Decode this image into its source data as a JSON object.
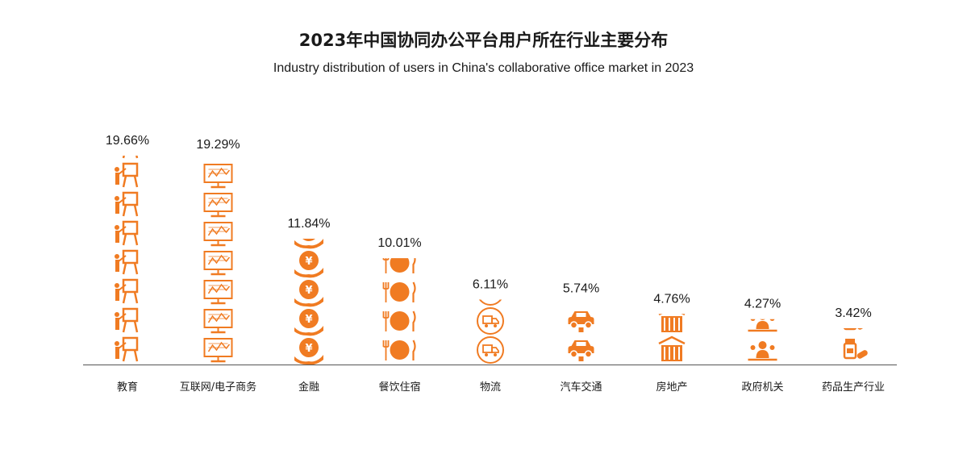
{
  "header": {
    "title": "2023年中国协同办公平台用户所在行业主要分布",
    "subtitle": "Industry distribution of users in China's collaborative office market in 2023"
  },
  "colors": {
    "accent": "#F07B22",
    "axis": "#555555",
    "text": "#1a1a1a"
  },
  "chart_data": {
    "type": "bar",
    "title": "2023年中国协同办公平台用户所在行业主要分布",
    "subtitle": "Industry distribution of users in China's collaborative office market in 2023",
    "categories": [
      "教育",
      "互联网/电子商务",
      "金融",
      "餐饮住宿",
      "物流",
      "汽车交通",
      "房地产",
      "政府机关",
      "药品生产行业"
    ],
    "values": [
      19.66,
      19.29,
      11.84,
      10.01,
      6.11,
      5.74,
      4.76,
      4.27,
      3.42
    ],
    "value_labels": [
      "19.66%",
      "19.29%",
      "11.84%",
      "10.01%",
      "6.11%",
      "5.74%",
      "4.76%",
      "4.27%",
      "3.42%"
    ],
    "icons": [
      "teacher-board-icon",
      "monitor-icon",
      "yen-coin-hand-icon",
      "plate-fork-knife-icon",
      "delivery-truck-icon",
      "car-icon",
      "building-icon",
      "people-group-icon",
      "medicine-icon"
    ],
    "unit": "%",
    "ylim": [
      0,
      20
    ],
    "grid": false,
    "legend": "none"
  }
}
